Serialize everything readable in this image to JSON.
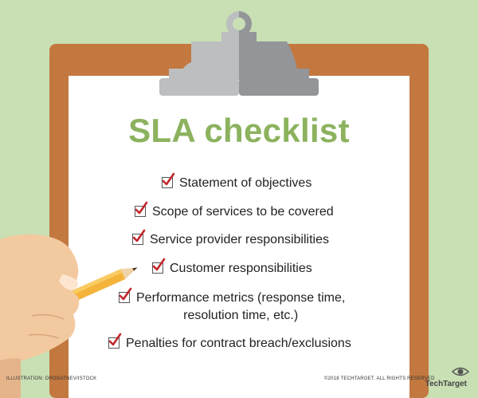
{
  "title": "SLA checklist",
  "checklist": {
    "items": [
      {
        "text": "Statement of objectives"
      },
      {
        "text": "Scope of services to be covered"
      },
      {
        "text": "Service provider responsibilities"
      },
      {
        "text": "Customer responsibilities"
      },
      {
        "text": "Performance metrics (response time,\nresolution time, etc.)"
      },
      {
        "text": "Penalties for contract breach/exclusions"
      }
    ]
  },
  "footer": {
    "illustration_credit": "ILLUSTRATION: DROGATNEV/ISTOCK",
    "copyright": "©2018 TECHTARGET. ALL RIGHTS RESERVED",
    "brand": "TechTarget"
  },
  "colors": {
    "background": "#c9dfb4",
    "board": "#c2783f",
    "title": "#8cb25e",
    "check": "#c0272d",
    "clip_light": "#bcbec0",
    "clip_dark": "#939598"
  },
  "icons": {
    "check": "checkmark-icon",
    "clip": "clipboard-clip-icon",
    "hand": "hand-with-pencil-icon",
    "logo": "eye-logo-icon"
  }
}
